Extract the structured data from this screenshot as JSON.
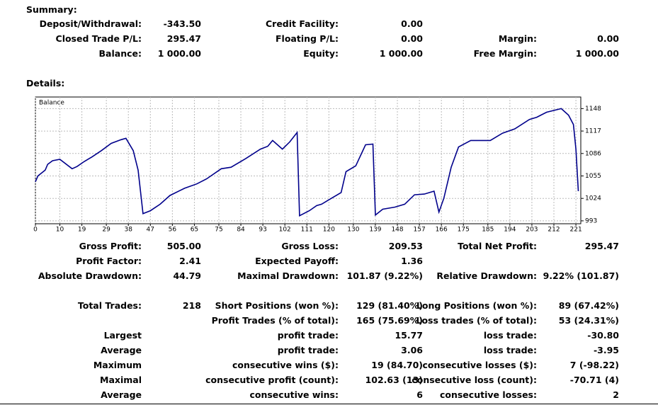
{
  "summary": {
    "title": "Summary:",
    "rows": [
      [
        {
          "label": "Deposit/Withdrawal:",
          "value": "-343.50"
        },
        {
          "label": "Credit Facility:",
          "value": "0.00"
        },
        null
      ],
      [
        {
          "label": "Closed Trade P/L:",
          "value": "295.47"
        },
        {
          "label": "Floating P/L:",
          "value": "0.00"
        },
        {
          "label": "Margin:",
          "value": "0.00"
        }
      ],
      [
        {
          "label": "Balance:",
          "value": "1 000.00"
        },
        {
          "label": "Equity:",
          "value": "1 000.00"
        },
        {
          "label": "Free Margin:",
          "value": "1 000.00"
        }
      ]
    ]
  },
  "details": {
    "title": "Details:",
    "rows": [
      [
        {
          "label": "Gross Profit:",
          "value": "505.00"
        },
        {
          "label": "Gross Loss:",
          "value": "209.53"
        },
        {
          "label": "Total Net Profit:",
          "value": "295.47"
        }
      ],
      [
        {
          "label": "Profit Factor:",
          "value": "2.41"
        },
        {
          "label": "Expected Payoff:",
          "value": "1.36"
        },
        null
      ],
      [
        {
          "label": "Absolute Drawdown:",
          "value": "44.79"
        },
        {
          "label": "Maximal Drawdown:",
          "value": "101.87 (9.22%)"
        },
        {
          "label": "Relative Drawdown:",
          "value": "9.22% (101.87)"
        }
      ],
      [
        {
          "label": "Total Trades:",
          "value": "218"
        },
        {
          "label": "Short Positions (won %):",
          "value": "129 (81.40%)"
        },
        {
          "label": "Long Positions (won %):",
          "value": "89 (67.42%)"
        }
      ],
      [
        null,
        {
          "label": "Profit Trades (% of total):",
          "value": "165 (75.69%)"
        },
        {
          "label": "Loss trades (% of total):",
          "value": "53 (24.31%)"
        }
      ],
      [
        {
          "label": "Largest"
        },
        {
          "label": "profit trade:",
          "value": "15.77"
        },
        {
          "label": "loss trade:",
          "value": "-30.80"
        }
      ],
      [
        {
          "label": "Average"
        },
        {
          "label": "profit trade:",
          "value": "3.06"
        },
        {
          "label": "loss trade:",
          "value": "-3.95"
        }
      ],
      [
        {
          "label": "Maximum"
        },
        {
          "label": "consecutive wins ($):",
          "value": "19 (84.70)"
        },
        {
          "label": "consecutive losses ($):",
          "value": "7 (-98.22)"
        }
      ],
      [
        {
          "label": "Maximal"
        },
        {
          "label": "consecutive profit (count):",
          "value": "102.63 (13)"
        },
        {
          "label": "consecutive loss (count):",
          "value": "-70.71 (4)"
        }
      ],
      [
        {
          "label": "Average"
        },
        {
          "label": "consecutive wins:",
          "value": "6"
        },
        {
          "label": "consecutive losses:",
          "value": "2"
        }
      ]
    ]
  },
  "chart_data": {
    "type": "line",
    "title": "Balance",
    "color": "#00008b",
    "grid": true,
    "x": [
      0,
      1,
      4,
      5,
      7,
      10,
      15,
      17,
      20,
      23,
      27,
      31,
      35,
      37,
      40,
      42,
      44,
      47,
      51,
      55,
      61,
      66,
      70,
      76,
      80,
      86,
      92,
      95,
      97,
      101,
      104,
      107,
      108,
      112,
      115,
      117,
      120,
      125,
      127,
      131,
      135,
      138,
      139,
      142,
      147,
      151,
      155,
      159,
      163,
      165,
      167,
      170,
      173,
      178,
      181,
      186,
      191,
      196,
      202,
      205,
      209,
      215,
      218,
      220,
      221,
      222
    ],
    "values": [
      1047,
      1055,
      1063,
      1071,
      1076,
      1078,
      1065,
      1068,
      1075,
      1081,
      1090,
      1100,
      1105,
      1107,
      1090,
      1063,
      1003,
      1007,
      1016,
      1028,
      1038,
      1044,
      1051,
      1065,
      1067,
      1079,
      1092,
      1096,
      1104,
      1092,
      1102,
      1115,
      1000,
      1007,
      1014,
      1016,
      1022,
      1032,
      1061,
      1069,
      1098,
      1099,
      1001,
      1009,
      1012,
      1016,
      1029,
      1030,
      1034,
      1005,
      1024,
      1067,
      1095,
      1104,
      1104,
      1104,
      1114,
      1120,
      1133,
      1136,
      1143,
      1148,
      1139,
      1126,
      1092,
      1034
    ],
    "xlim": [
      0,
      223
    ],
    "xticks": [
      0,
      10,
      19,
      29,
      38,
      47,
      56,
      65,
      75,
      84,
      93,
      102,
      111,
      120,
      130,
      139,
      148,
      157,
      166,
      175,
      185,
      194,
      203,
      212,
      221
    ],
    "ylim": [
      989,
      1164
    ],
    "yticks": [
      993,
      1024,
      1055,
      1086,
      1117,
      1148
    ]
  }
}
